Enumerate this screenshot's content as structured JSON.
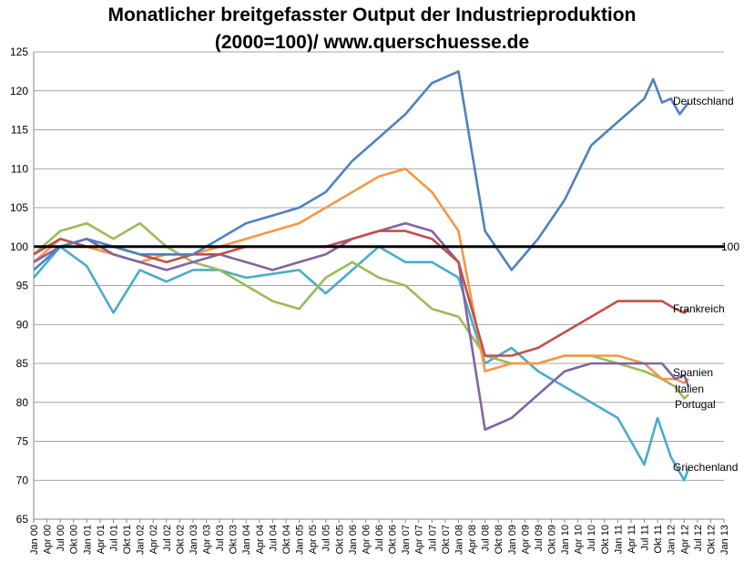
{
  "chart_data": {
    "type": "line",
    "title": "Monatlicher breitgefasster Output der Industrieproduktion",
    "subtitle": "(2000=100)/ www.querschuesse.de",
    "ylim": [
      65,
      125
    ],
    "yticks": [
      65,
      70,
      75,
      80,
      85,
      90,
      95,
      100,
      105,
      110,
      115,
      120,
      125
    ],
    "x_tick_labels": [
      "Jan 00",
      "Apr 00",
      "Jul 00",
      "Okt 00",
      "Jan 01",
      "Apr 01",
      "Jul 01",
      "Okt 01",
      "Jan 02",
      "Apr 02",
      "Jul 02",
      "Okt 02",
      "Jan 03",
      "Apr 03",
      "Jul 03",
      "Okt 03",
      "Jan 04",
      "Apr 04",
      "Jul 04",
      "Okt 04",
      "Jan 05",
      "Apr 05",
      "Jul 05",
      "Okt 05",
      "Jan 06",
      "Apr 06",
      "Jul 06",
      "Okt 06",
      "Jan 07",
      "Apr 07",
      "Jul 07",
      "Okt 07",
      "Jan 08",
      "Apr 08",
      "Jul 08",
      "Okt 08",
      "Jan 09",
      "Apr 09",
      "Jul 09",
      "Okt 09",
      "Jan 10",
      "Apr 10",
      "Jul 10",
      "Okt 10",
      "Jan 11",
      "Apr 11",
      "Jul 11",
      "Okt 11",
      "Jan 12",
      "Apr 12",
      "Jul 12",
      "Okt 12",
      "Jan 13"
    ],
    "grid": "horizontal",
    "reference_line": {
      "value": 100,
      "label": "100"
    },
    "series": [
      {
        "name": "Griechenland",
        "color": "#4aacc6",
        "points": [
          [
            0,
            96
          ],
          [
            6,
            100
          ],
          [
            12,
            97.5
          ],
          [
            18,
            91.5
          ],
          [
            24,
            97
          ],
          [
            30,
            95.5
          ],
          [
            36,
            97
          ],
          [
            42,
            97
          ],
          [
            48,
            96
          ],
          [
            54,
            96.5
          ],
          [
            60,
            97
          ],
          [
            66,
            94
          ],
          [
            72,
            97
          ],
          [
            78,
            100
          ],
          [
            84,
            98
          ],
          [
            90,
            98
          ],
          [
            96,
            96
          ],
          [
            102,
            85
          ],
          [
            108,
            87
          ],
          [
            114,
            84
          ],
          [
            120,
            82
          ],
          [
            126,
            80
          ],
          [
            132,
            78
          ],
          [
            138,
            72
          ],
          [
            141,
            78
          ],
          [
            144,
            73
          ],
          [
            147,
            70
          ],
          [
            148,
            71.5
          ]
        ]
      },
      {
        "name": "Portugal",
        "color": "#9bbb59",
        "points": [
          [
            0,
            99
          ],
          [
            6,
            102
          ],
          [
            12,
            103
          ],
          [
            18,
            101
          ],
          [
            24,
            103
          ],
          [
            30,
            100
          ],
          [
            36,
            98
          ],
          [
            42,
            97
          ],
          [
            48,
            95
          ],
          [
            54,
            93
          ],
          [
            60,
            92
          ],
          [
            66,
            96
          ],
          [
            72,
            98
          ],
          [
            78,
            96
          ],
          [
            84,
            95
          ],
          [
            90,
            92
          ],
          [
            96,
            91
          ],
          [
            102,
            86
          ],
          [
            108,
            85
          ],
          [
            114,
            85
          ],
          [
            120,
            86
          ],
          [
            126,
            86
          ],
          [
            132,
            85
          ],
          [
            138,
            84
          ],
          [
            142,
            83
          ],
          [
            145,
            82
          ],
          [
            147,
            80.5
          ],
          [
            148,
            81
          ]
        ]
      },
      {
        "name": "Italien",
        "color": "#f79646",
        "points": [
          [
            0,
            98
          ],
          [
            6,
            101
          ],
          [
            12,
            100
          ],
          [
            18,
            99
          ],
          [
            24,
            98
          ],
          [
            30,
            99
          ],
          [
            36,
            99
          ],
          [
            42,
            100
          ],
          [
            48,
            101
          ],
          [
            54,
            102
          ],
          [
            60,
            103
          ],
          [
            66,
            105
          ],
          [
            72,
            107
          ],
          [
            78,
            109
          ],
          [
            84,
            110
          ],
          [
            90,
            107
          ],
          [
            96,
            102
          ],
          [
            102,
            84
          ],
          [
            108,
            85
          ],
          [
            114,
            85
          ],
          [
            120,
            86
          ],
          [
            126,
            86
          ],
          [
            132,
            86
          ],
          [
            138,
            85
          ],
          [
            142,
            83
          ],
          [
            145,
            83
          ],
          [
            147,
            82.5
          ],
          [
            148,
            83
          ]
        ]
      },
      {
        "name": "Spanien",
        "color": "#8064a2",
        "points": [
          [
            0,
            98
          ],
          [
            6,
            100
          ],
          [
            12,
            101
          ],
          [
            18,
            99
          ],
          [
            24,
            98
          ],
          [
            30,
            97
          ],
          [
            36,
            98
          ],
          [
            42,
            99
          ],
          [
            48,
            98
          ],
          [
            54,
            97
          ],
          [
            60,
            98
          ],
          [
            66,
            99
          ],
          [
            72,
            101
          ],
          [
            78,
            102
          ],
          [
            84,
            103
          ],
          [
            90,
            102
          ],
          [
            96,
            98
          ],
          [
            102,
            76.5
          ],
          [
            108,
            78
          ],
          [
            114,
            81
          ],
          [
            120,
            84
          ],
          [
            126,
            85
          ],
          [
            132,
            85
          ],
          [
            138,
            85
          ],
          [
            142,
            85
          ],
          [
            145,
            83
          ],
          [
            147,
            83.5
          ],
          [
            148,
            82
          ]
        ]
      },
      {
        "name": "Frankreich",
        "color": "#c0504d",
        "points": [
          [
            0,
            99
          ],
          [
            6,
            101
          ],
          [
            12,
            100
          ],
          [
            18,
            100
          ],
          [
            24,
            99
          ],
          [
            30,
            98
          ],
          [
            36,
            99
          ],
          [
            42,
            99
          ],
          [
            48,
            100
          ],
          [
            54,
            100
          ],
          [
            60,
            100
          ],
          [
            66,
            100
          ],
          [
            72,
            101
          ],
          [
            78,
            102
          ],
          [
            84,
            102
          ],
          [
            90,
            101
          ],
          [
            96,
            98
          ],
          [
            102,
            86
          ],
          [
            108,
            86
          ],
          [
            114,
            87
          ],
          [
            120,
            89
          ],
          [
            126,
            91
          ],
          [
            132,
            93
          ],
          [
            138,
            93
          ],
          [
            142,
            93
          ],
          [
            145,
            92
          ],
          [
            147,
            91.5
          ],
          [
            148,
            92
          ]
        ]
      },
      {
        "name": "Deutschland",
        "color": "#4f81bd",
        "points": [
          [
            0,
            97
          ],
          [
            6,
            100
          ],
          [
            12,
            101
          ],
          [
            18,
            100
          ],
          [
            24,
            99
          ],
          [
            30,
            99
          ],
          [
            36,
            99
          ],
          [
            42,
            101
          ],
          [
            48,
            103
          ],
          [
            54,
            104
          ],
          [
            60,
            105
          ],
          [
            66,
            107
          ],
          [
            72,
            111
          ],
          [
            78,
            114
          ],
          [
            84,
            117
          ],
          [
            90,
            121
          ],
          [
            96,
            122.5
          ],
          [
            102,
            102
          ],
          [
            108,
            97
          ],
          [
            114,
            101
          ],
          [
            120,
            106
          ],
          [
            126,
            113
          ],
          [
            132,
            116
          ],
          [
            138,
            119
          ],
          [
            140,
            121.5
          ],
          [
            142,
            118.5
          ],
          [
            144,
            119
          ],
          [
            146,
            117
          ],
          [
            148,
            118.5
          ]
        ]
      }
    ],
    "labels": {
      "Deutschland": "Deutschland",
      "Frankreich": "Frankreich",
      "Spanien": "Spanien",
      "Italien": "Italien",
      "Portugal": "Portugal",
      "Griechenland": "Griechenland"
    }
  }
}
